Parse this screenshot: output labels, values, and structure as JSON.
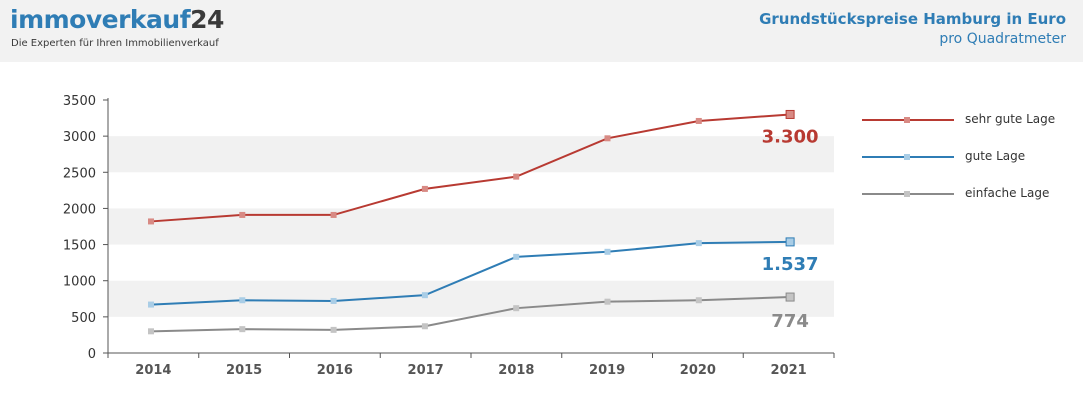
{
  "header": {
    "brand_name": "immoverkauf",
    "brand_number": "24",
    "tagline": "Die Experten für Ihren Immobilienverkauf",
    "title": "Grundstückspreise Hamburg in Euro",
    "subtitle": "pro Quadratmeter"
  },
  "chart_data": {
    "type": "line",
    "title": "Grundstückspreise Hamburg in Euro",
    "subtitle": "pro Quadratmeter",
    "categories": [
      "2014",
      "2015",
      "2016",
      "2017",
      "2018",
      "2019",
      "2020",
      "2021"
    ],
    "ylim": [
      0,
      3500
    ],
    "yticks": [
      0,
      500,
      1000,
      1500,
      2000,
      2500,
      3000,
      3500
    ],
    "xlabel": "",
    "ylabel": "",
    "grid": "alternating horizontal bands",
    "legend_position": "right",
    "series": [
      {
        "name": "sehr gute Lage",
        "color": "#b83a32",
        "marker_color": "#d88a84",
        "values": [
          1820,
          1910,
          1910,
          2270,
          2440,
          2970,
          3210,
          3300
        ],
        "end_label": "3.300"
      },
      {
        "name": "gute Lage",
        "color": "#2f7db5",
        "marker_color": "#a9cde6",
        "values": [
          670,
          730,
          720,
          800,
          1330,
          1400,
          1520,
          1537
        ],
        "end_label": "1.537"
      },
      {
        "name": "einfache Lage",
        "color": "#8a8a8a",
        "marker_color": "#c4c4c4",
        "values": [
          300,
          330,
          320,
          370,
          620,
          710,
          730,
          774
        ],
        "end_label": "774"
      }
    ]
  }
}
